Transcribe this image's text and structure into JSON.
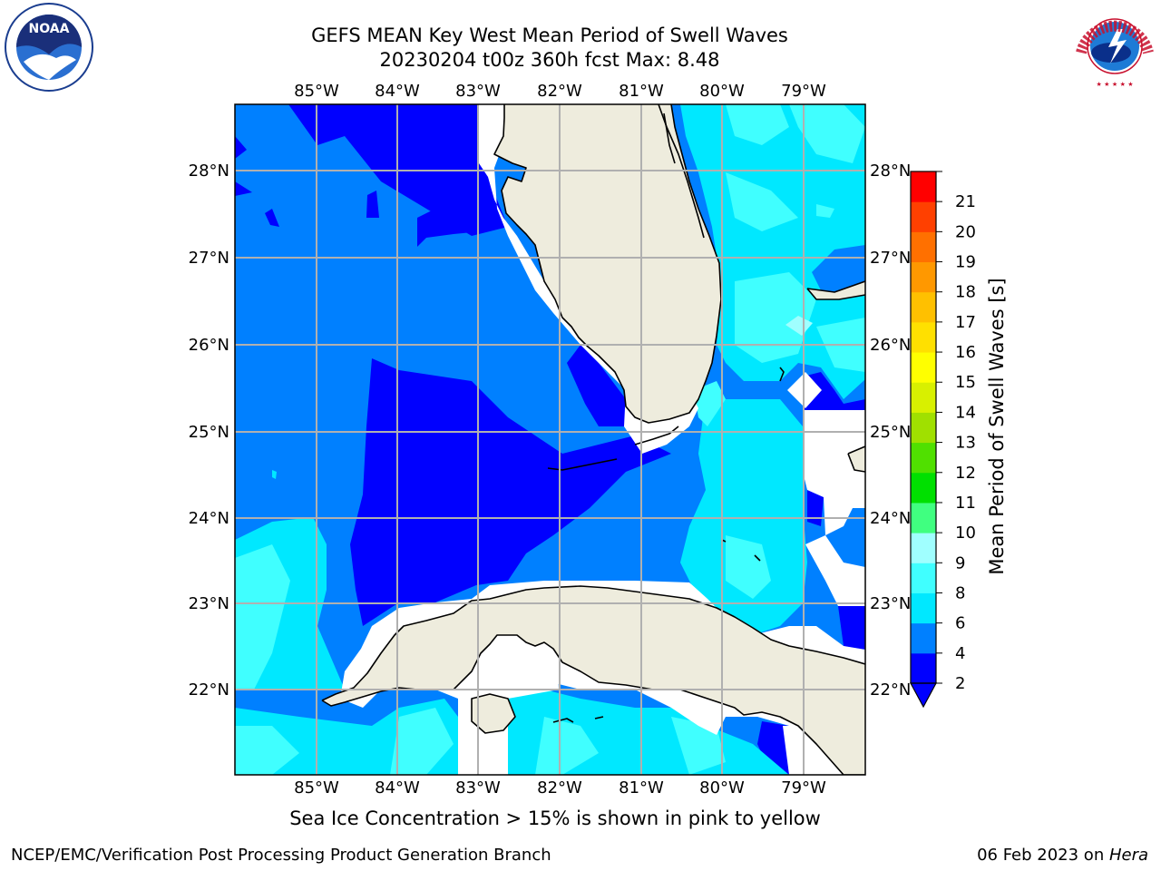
{
  "title": {
    "line1": "GEFS MEAN Key West Mean Period of Swell Waves",
    "line2": "20230204 t00z 360h fcst   Max: 8.48"
  },
  "axes": {
    "lon_labels": [
      "85°W",
      "84°W",
      "83°W",
      "82°W",
      "81°W",
      "80°W",
      "79°W"
    ],
    "lat_labels": [
      "28°N",
      "27°N",
      "26°N",
      "25°N",
      "24°N",
      "23°N",
      "22°N"
    ]
  },
  "colorbar": {
    "label": "Mean Period of Swell Waves [s]",
    "ticks": [
      "21",
      "20",
      "19",
      "18",
      "17",
      "16",
      "15",
      "14",
      "13",
      "12",
      "11",
      "10",
      "9",
      "8",
      "6",
      "4",
      "2"
    ],
    "colors": [
      "#0000ff",
      "#0080ff",
      "#00e8ff",
      "#40ffff",
      "#a0ffff",
      "#40ff80",
      "#00e000",
      "#50e000",
      "#a0e000",
      "#d8f000",
      "#ffff00",
      "#ffe000",
      "#ffc000",
      "#ff9800",
      "#ff7000",
      "#ff4000",
      "#ff0000"
    ]
  },
  "map_colors": {
    "land": "#eeecdd",
    "band_2_4": "#0000ff",
    "band_4_6": "#0080ff",
    "band_6_8": "#00e8ff",
    "band_8_9": "#40ffff",
    "band_9_10": "#a0ffff"
  },
  "logos": {
    "left": "NOAA",
    "right": "NATIONAL WEATHER SERVICE"
  },
  "note": "Sea Ice Concentration > 15% is shown in pink to yellow",
  "footer": {
    "left": "NCEP/EMC/Verification Post Processing Product Generation Branch",
    "date": "06 Feb 2023 on ",
    "machine": "Hera"
  }
}
